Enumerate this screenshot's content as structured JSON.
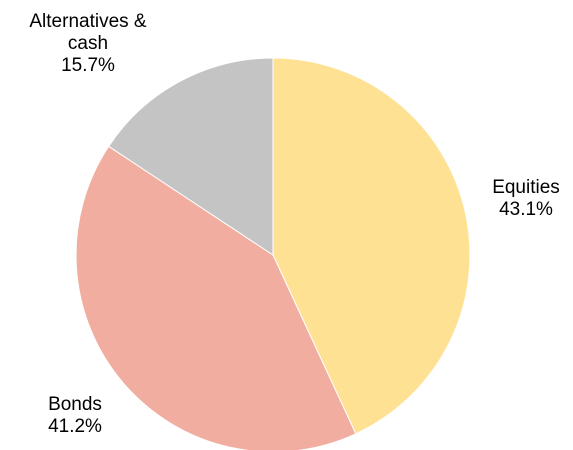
{
  "chart_data": {
    "type": "pie",
    "title": "",
    "slices": [
      {
        "label": [
          "Equities"
        ],
        "value": 43.1,
        "value_label": "43.1%",
        "color": "#FFE194"
      },
      {
        "label": [
          "Bonds"
        ],
        "value": 41.2,
        "value_label": "41.2%",
        "color": "#F1ADA0"
      },
      {
        "label": [
          "Alternatives &",
          "cash"
        ],
        "value": 15.7,
        "value_label": "15.7%",
        "color": "#C4C4C4"
      }
    ],
    "start_angle": "12 o'clock",
    "direction": "clockwise",
    "legend": "none"
  }
}
